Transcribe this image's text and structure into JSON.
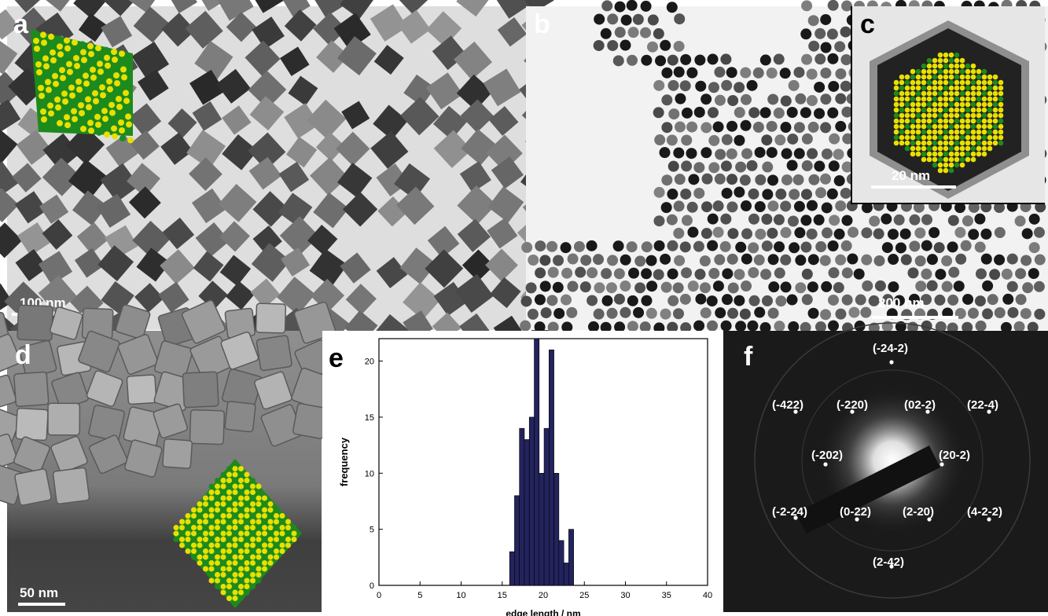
{
  "figure": {
    "panels": {
      "a": {
        "label": "a",
        "scalebar": "100 nm"
      },
      "b": {
        "label": "b",
        "scalebar": "200 nm"
      },
      "c": {
        "label": "c",
        "scalebar": "20 nm"
      },
      "d": {
        "label": "d",
        "scalebar": "50 nm"
      },
      "e": {
        "label": "e"
      },
      "f": {
        "label": "f",
        "spots": [
          "(-24-2)",
          "(-422)",
          "(-220)",
          "(02-2)",
          "(22-4)",
          "(-202)",
          "(20-2)",
          "(-2-24)",
          "(0-22)",
          "(2-20)",
          "(4-2-2)",
          "(2-42)"
        ]
      }
    }
  },
  "colors": {
    "atom_yellow": "#e8e000",
    "atom_green": "#1d8a1d",
    "hist_bar": "#23235e",
    "diffraction_bg": "#1a1a1a"
  },
  "chart_data": {
    "type": "bar",
    "xlabel": "edge length / nm",
    "ylabel": "frequency",
    "xlim": [
      0,
      40
    ],
    "ylim": [
      0,
      22
    ],
    "xticks": [
      "0",
      "5",
      "10",
      "15",
      "20",
      "25",
      "30",
      "35",
      "40"
    ],
    "yticks": [
      "0",
      "5",
      "10",
      "15",
      "20"
    ],
    "bin_width": 0.6,
    "x": [
      16.2,
      16.8,
      17.4,
      18.0,
      18.6,
      19.2,
      19.8,
      20.4,
      21.0,
      21.6,
      22.2,
      22.8,
      23.4
    ],
    "values": [
      3,
      8,
      14,
      13,
      15,
      22,
      10,
      14,
      21,
      10,
      4,
      2,
      5
    ]
  }
}
